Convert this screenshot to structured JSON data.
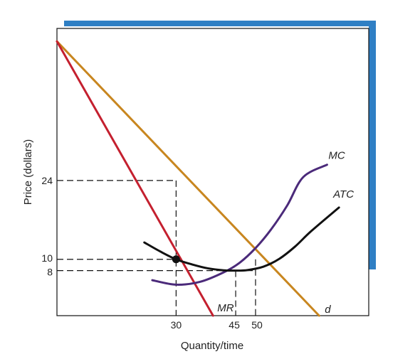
{
  "colors": {
    "frame_accent": "#2f7fc4",
    "demand": "#c8861f",
    "marginal_revenue": "#c4202f",
    "marginal_cost": "#4b2a7a",
    "average_total_cost": "#111111",
    "guide": "#111111"
  },
  "chart_data": {
    "type": "line",
    "title": "",
    "xlabel": "Quantity/time",
    "ylabel": "Price (dollars)",
    "xlim": [
      0,
      78.5
    ],
    "ylim": [
      0,
      51
    ],
    "x_ticks": [
      {
        "value": 30,
        "label": "30"
      },
      {
        "value": 45,
        "label": "45"
      },
      {
        "value": 50,
        "label": "50"
      }
    ],
    "y_ticks": [
      {
        "value": 24,
        "label": "24"
      },
      {
        "value": 10,
        "label": "10"
      },
      {
        "value": 8,
        "label": "8"
      }
    ],
    "series": [
      {
        "name": "d",
        "key": "demand",
        "x": [
          0,
          66
        ],
        "y": [
          48.7,
          0
        ]
      },
      {
        "name": "MR",
        "key": "marginal_revenue",
        "x": [
          0,
          39.3
        ],
        "y": [
          48.7,
          0
        ]
      },
      {
        "name": "MC",
        "key": "marginal_cost",
        "x": [
          24,
          30,
          36,
          42,
          46,
          50,
          54,
          58,
          62,
          68
        ],
        "y": [
          6.3,
          5.5,
          6.0,
          7.7,
          9.4,
          12.0,
          15.4,
          19.6,
          24.6,
          26.8
        ]
      },
      {
        "name": "ATC",
        "key": "average_total_cost",
        "x": [
          22,
          26,
          30,
          34,
          38,
          42,
          45,
          48,
          52,
          56,
          60,
          64,
          71
        ],
        "y": [
          13.0,
          11.4,
          10.0,
          9.1,
          8.4,
          8.05,
          8.0,
          8.1,
          8.7,
          10.1,
          12.3,
          15.0,
          19.2
        ]
      }
    ],
    "points": [
      {
        "x": 30,
        "y": 10,
        "label": ""
      }
    ],
    "guides": [
      {
        "from": [
          0,
          24
        ],
        "to": [
          30,
          24
        ]
      },
      {
        "from": [
          30,
          24
        ],
        "to": [
          30,
          0
        ]
      },
      {
        "from": [
          0,
          10
        ],
        "to": [
          30,
          10
        ]
      },
      {
        "from": [
          0,
          8
        ],
        "to": [
          50,
          8
        ]
      },
      {
        "from": [
          45,
          8
        ],
        "to": [
          45,
          0
        ]
      },
      {
        "from": [
          50,
          10
        ],
        "to": [
          50,
          0
        ]
      }
    ],
    "curve_labels": [
      {
        "series": "MC",
        "text": "MC"
      },
      {
        "series": "ATC",
        "text": "ATC"
      },
      {
        "series": "MR",
        "text": "MR"
      },
      {
        "series": "d",
        "text": "d"
      }
    ],
    "grid": false,
    "legend": "none"
  }
}
